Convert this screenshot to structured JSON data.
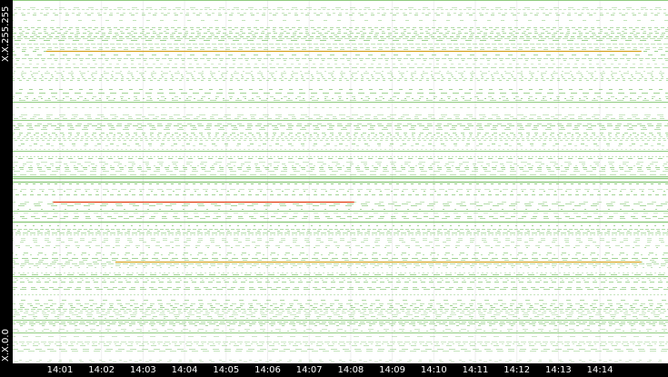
{
  "chart_data": {
    "type": "heatmap",
    "title": "",
    "xlabel": "",
    "ylabel": "",
    "y_ticks": [
      "X.X.255.255",
      "X.X.0.0"
    ],
    "x_ticks": [
      "14:01",
      "14:02",
      "14:03",
      "14:04",
      "14:05",
      "14:06",
      "14:07",
      "14:08",
      "14:09",
      "14:10",
      "14:11",
      "14:12",
      "14:13",
      "14:14"
    ],
    "x_range": [
      "14:00:40",
      "14:15:00"
    ],
    "colors": {
      "background": "#ffffff",
      "low": "#7dc36b",
      "medium": "#d7a321",
      "high": "#e23c10",
      "axis": "#000000",
      "gridline": "#eeeeee"
    },
    "highlighted_flows": [
      {
        "y_fraction_from_top": 0.555,
        "start": "14:00:50",
        "end": "14:08:05",
        "level": "high"
      },
      {
        "y_fraction_from_top": 0.72,
        "start": "14:02:20",
        "end": "14:15:00",
        "level": "medium"
      },
      {
        "y_fraction_from_top": 0.14,
        "start": "14:00:40",
        "end": "14:15:00",
        "level": "medium"
      }
    ]
  }
}
